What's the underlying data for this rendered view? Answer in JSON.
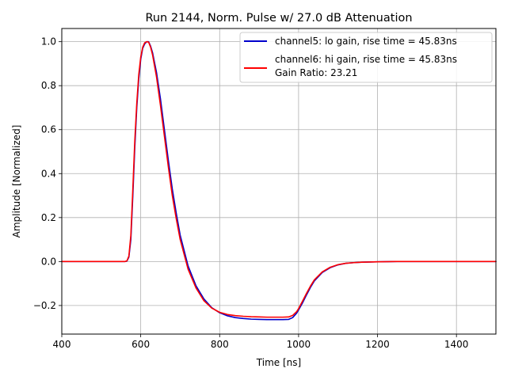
{
  "chart_data": {
    "type": "line",
    "title": "Run 2144, Norm. Pulse w/ 27.0 dB Attenuation",
    "xlabel": "Time [ns]",
    "ylabel": "Amplitude [Normalized]",
    "xlim": [
      400,
      1500
    ],
    "ylim": [
      -0.33,
      1.06
    ],
    "grid": true,
    "legend_position": "upper right",
    "x_ticks": [
      400,
      600,
      800,
      1000,
      1200,
      1400
    ],
    "x_tick_labels": [
      "400",
      "600",
      "800",
      "1000",
      "1200",
      "1400"
    ],
    "y_ticks": [
      -0.2,
      0.0,
      0.2,
      0.4,
      0.6,
      0.8,
      1.0
    ],
    "y_tick_labels": [
      "−0.2",
      "0.0",
      "0.2",
      "0.4",
      "0.6",
      "0.8",
      "1.0"
    ],
    "legend_extra_text": "Gain Ratio: 23.21",
    "series": [
      {
        "name": "channel5: lo gain, rise time = 45.83ns",
        "color": "#0000cc",
        "x": [
          400,
          560,
          565,
          570,
          575,
          580,
          585,
          590,
          595,
          600,
          605,
          610,
          615,
          620,
          625,
          630,
          640,
          650,
          660,
          670,
          680,
          690,
          700,
          720,
          740,
          760,
          780,
          800,
          820,
          840,
          860,
          880,
          900,
          920,
          940,
          960,
          975,
          985,
          995,
          1000,
          1010,
          1020,
          1030,
          1040,
          1060,
          1080,
          1100,
          1120,
          1140,
          1160,
          1180,
          1200,
          1250,
          1300,
          1400,
          1500
        ],
        "y": [
          0.0,
          0.0,
          0.002,
          0.02,
          0.1,
          0.3,
          0.52,
          0.7,
          0.83,
          0.92,
          0.97,
          0.99,
          1.0,
          1.0,
          0.98,
          0.95,
          0.86,
          0.74,
          0.6,
          0.46,
          0.33,
          0.22,
          0.12,
          -0.02,
          -0.11,
          -0.17,
          -0.21,
          -0.233,
          -0.247,
          -0.255,
          -0.259,
          -0.262,
          -0.263,
          -0.264,
          -0.264,
          -0.264,
          -0.263,
          -0.255,
          -0.235,
          -0.22,
          -0.188,
          -0.152,
          -0.118,
          -0.088,
          -0.05,
          -0.028,
          -0.015,
          -0.008,
          -0.005,
          -0.003,
          -0.002,
          -0.001,
          0.0,
          0.0,
          0.0,
          0.0
        ]
      },
      {
        "name": "channel6: hi gain, rise time = 45.83ns",
        "color": "#ff0000",
        "x": [
          400,
          560,
          565,
          570,
          575,
          580,
          585,
          590,
          595,
          600,
          605,
          610,
          615,
          620,
          625,
          630,
          640,
          650,
          660,
          670,
          680,
          690,
          700,
          720,
          740,
          760,
          780,
          800,
          820,
          840,
          860,
          880,
          900,
          920,
          940,
          960,
          975,
          985,
          995,
          1000,
          1010,
          1020,
          1030,
          1040,
          1060,
          1080,
          1100,
          1120,
          1140,
          1160,
          1180,
          1200,
          1250,
          1300,
          1400,
          1500
        ],
        "y": [
          0.0,
          0.0,
          0.003,
          0.025,
          0.12,
          0.33,
          0.55,
          0.72,
          0.85,
          0.93,
          0.975,
          0.995,
          1.0,
          0.998,
          0.975,
          0.94,
          0.84,
          0.71,
          0.57,
          0.43,
          0.3,
          0.195,
          0.1,
          -0.035,
          -0.12,
          -0.178,
          -0.212,
          -0.231,
          -0.241,
          -0.246,
          -0.249,
          -0.251,
          -0.252,
          -0.253,
          -0.253,
          -0.253,
          -0.252,
          -0.245,
          -0.228,
          -0.214,
          -0.18,
          -0.145,
          -0.112,
          -0.083,
          -0.047,
          -0.026,
          -0.014,
          -0.008,
          -0.005,
          -0.003,
          -0.002,
          -0.001,
          0.0,
          0.0,
          0.0,
          0.0
        ]
      }
    ]
  }
}
